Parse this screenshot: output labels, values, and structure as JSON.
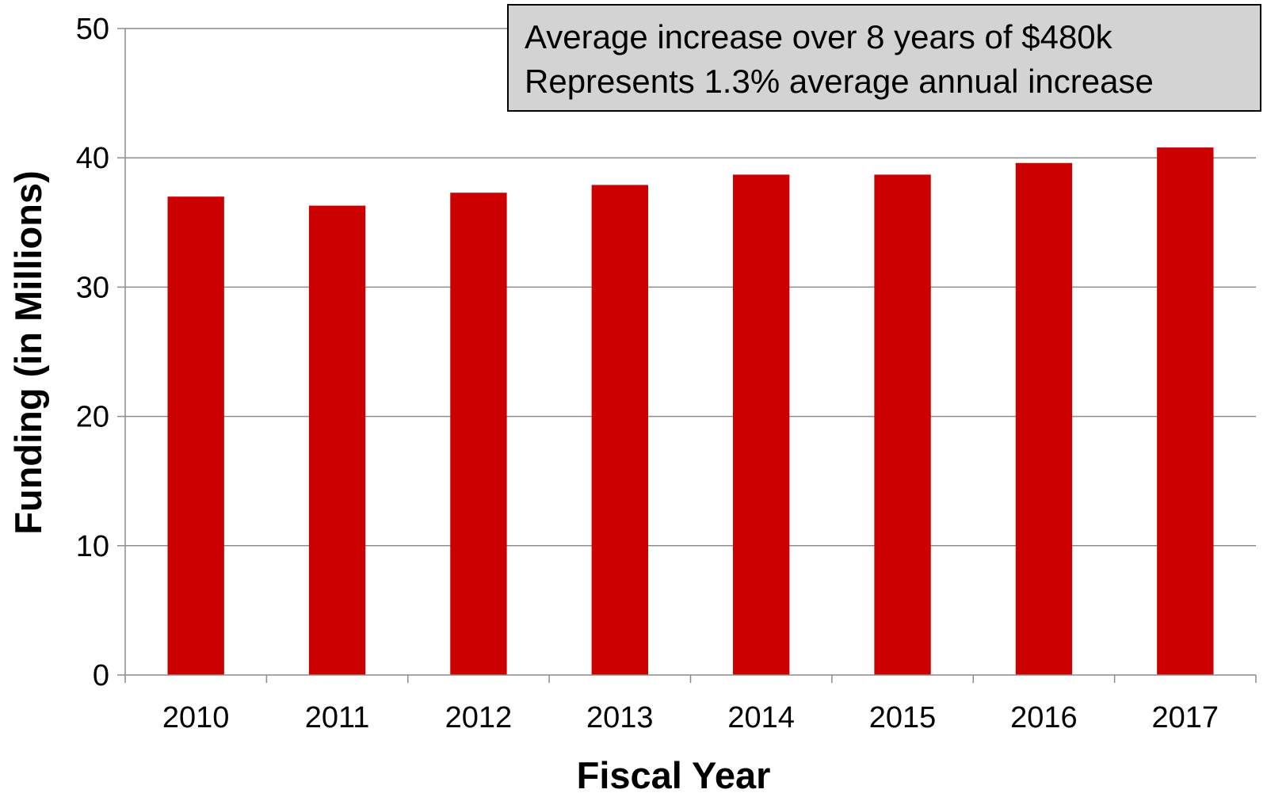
{
  "chart_data": {
    "type": "bar",
    "categories": [
      "2010",
      "2011",
      "2012",
      "2013",
      "2014",
      "2015",
      "2016",
      "2017"
    ],
    "values": [
      37.0,
      36.3,
      37.3,
      37.9,
      38.7,
      38.7,
      39.6,
      40.8
    ],
    "title": "",
    "xlabel": "Fiscal Year",
    "ylabel": "Funding (in Millions)",
    "ylim": [
      0,
      50
    ],
    "yticks": [
      "0",
      "10",
      "20",
      "30",
      "40",
      "50"
    ],
    "grid": true,
    "legend": "none",
    "bar_color": "#cc0000",
    "annotation": {
      "line1": "Average increase over 8 years of $480k",
      "line2": "Represents 1.3% average annual increase"
    }
  }
}
